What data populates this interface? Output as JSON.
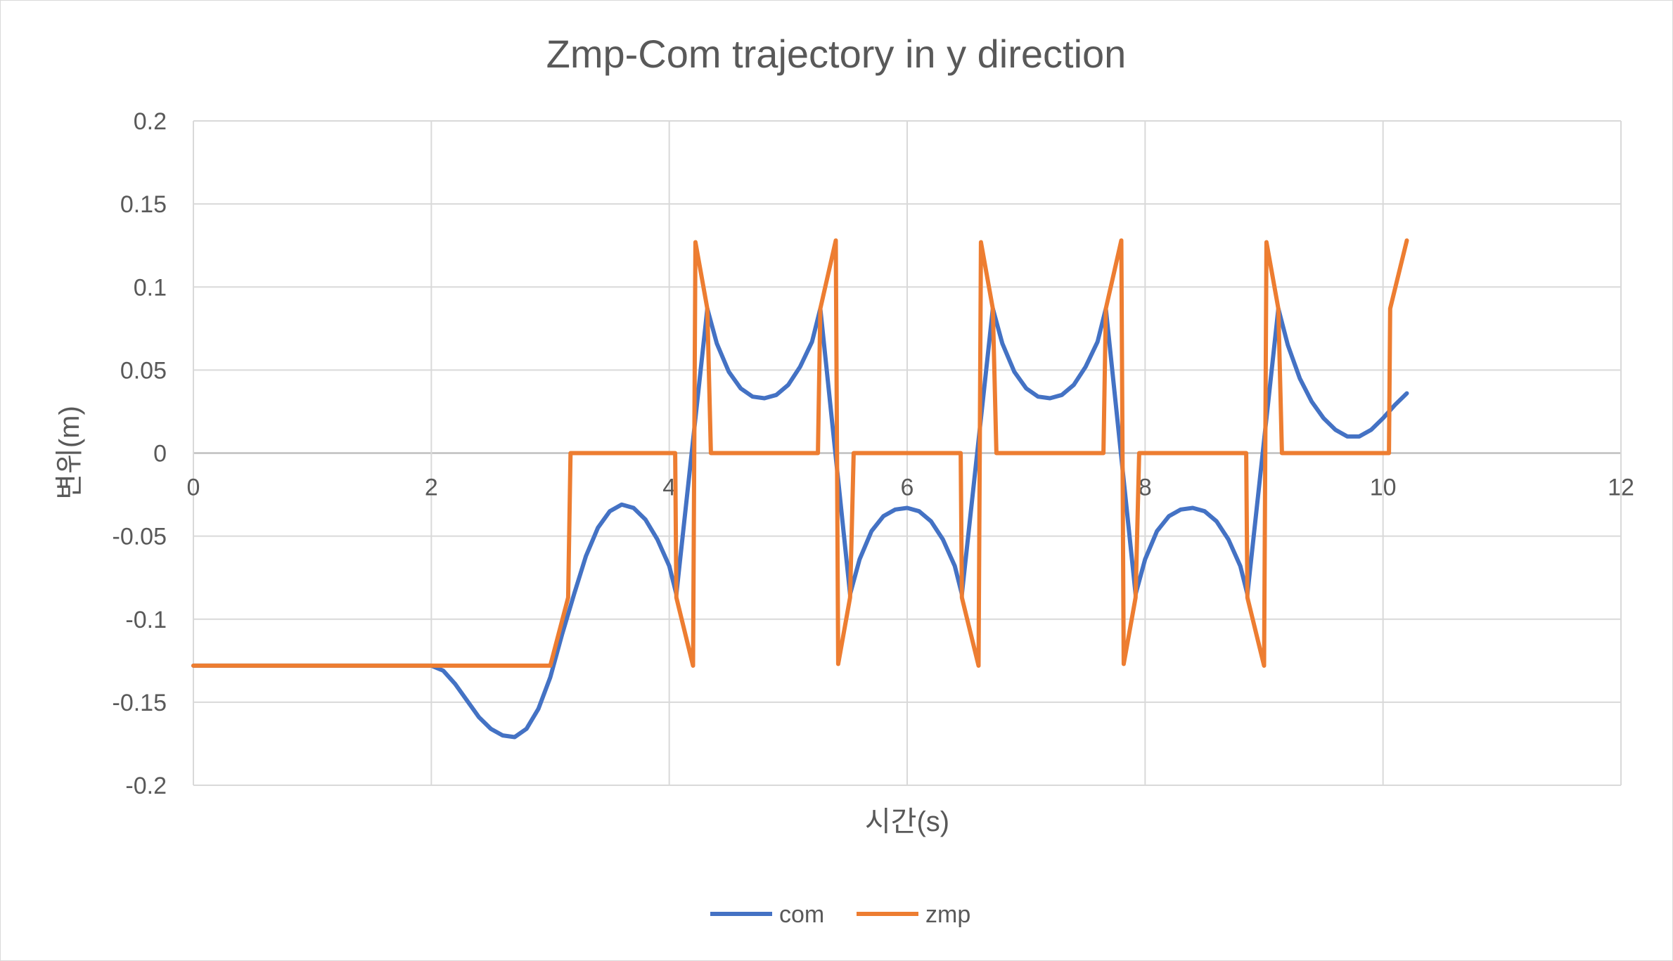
{
  "chart_data": {
    "type": "line",
    "title": "Zmp-Com trajectory in y direction",
    "xlabel": "시간(s)",
    "ylabel": "변위(m)",
    "xlim": [
      0,
      12
    ],
    "ylim": [
      -0.2,
      0.2
    ],
    "x_ticks": [
      0,
      2,
      4,
      6,
      8,
      10,
      12
    ],
    "x_tick_labels": [
      "0",
      "2",
      "4",
      "6",
      "8",
      "10",
      "12"
    ],
    "y_ticks": [
      0.2,
      0.15,
      0.1,
      0.05,
      0,
      -0.05,
      -0.1,
      -0.15,
      -0.2
    ],
    "y_tick_labels": [
      "0.2",
      "0.15",
      "0.1",
      "0.05",
      "0",
      "-0.05",
      "-0.1",
      "-0.15",
      "-0.2"
    ],
    "grid": true,
    "legend_position": "bottom",
    "series": [
      {
        "name": "com",
        "color": "#4472C4",
        "points": [
          [
            0,
            -0.128
          ],
          [
            1.0,
            -0.128
          ],
          [
            2.0,
            -0.128
          ],
          [
            2.1,
            -0.131
          ],
          [
            2.2,
            -0.139
          ],
          [
            2.3,
            -0.149
          ],
          [
            2.4,
            -0.159
          ],
          [
            2.5,
            -0.166
          ],
          [
            2.6,
            -0.17
          ],
          [
            2.7,
            -0.171
          ],
          [
            2.8,
            -0.166
          ],
          [
            2.9,
            -0.154
          ],
          [
            3.0,
            -0.135
          ],
          [
            3.1,
            -0.109
          ],
          [
            3.2,
            -0.085
          ],
          [
            3.3,
            -0.062
          ],
          [
            3.4,
            -0.045
          ],
          [
            3.5,
            -0.035
          ],
          [
            3.6,
            -0.031
          ],
          [
            3.7,
            -0.033
          ],
          [
            3.8,
            -0.04
          ],
          [
            3.9,
            -0.052
          ],
          [
            4.0,
            -0.068
          ],
          [
            4.06,
            -0.085
          ],
          [
            4.32,
            0.087
          ],
          [
            4.4,
            0.066
          ],
          [
            4.5,
            0.049
          ],
          [
            4.6,
            0.039
          ],
          [
            4.7,
            0.034
          ],
          [
            4.8,
            0.033
          ],
          [
            4.9,
            0.035
          ],
          [
            5.0,
            0.041
          ],
          [
            5.1,
            0.052
          ],
          [
            5.2,
            0.067
          ],
          [
            5.27,
            0.087
          ],
          [
            5.52,
            -0.085
          ],
          [
            5.6,
            -0.064
          ],
          [
            5.7,
            -0.047
          ],
          [
            5.8,
            -0.038
          ],
          [
            5.9,
            -0.034
          ],
          [
            6.0,
            -0.033
          ],
          [
            6.1,
            -0.035
          ],
          [
            6.2,
            -0.041
          ],
          [
            6.3,
            -0.052
          ],
          [
            6.4,
            -0.068
          ],
          [
            6.46,
            -0.085
          ],
          [
            6.72,
            0.087
          ],
          [
            6.8,
            0.066
          ],
          [
            6.9,
            0.049
          ],
          [
            7.0,
            0.039
          ],
          [
            7.1,
            0.034
          ],
          [
            7.2,
            0.033
          ],
          [
            7.3,
            0.035
          ],
          [
            7.4,
            0.041
          ],
          [
            7.5,
            0.052
          ],
          [
            7.6,
            0.067
          ],
          [
            7.67,
            0.087
          ],
          [
            7.92,
            -0.085
          ],
          [
            8.0,
            -0.064
          ],
          [
            8.1,
            -0.047
          ],
          [
            8.2,
            -0.038
          ],
          [
            8.3,
            -0.034
          ],
          [
            8.4,
            -0.033
          ],
          [
            8.5,
            -0.035
          ],
          [
            8.6,
            -0.041
          ],
          [
            8.7,
            -0.052
          ],
          [
            8.8,
            -0.068
          ],
          [
            8.86,
            -0.085
          ],
          [
            9.12,
            0.087
          ],
          [
            9.2,
            0.065
          ],
          [
            9.3,
            0.045
          ],
          [
            9.4,
            0.031
          ],
          [
            9.5,
            0.021
          ],
          [
            9.6,
            0.014
          ],
          [
            9.7,
            0.01
          ],
          [
            9.8,
            0.01
          ],
          [
            9.9,
            0.014
          ],
          [
            10.0,
            0.021
          ],
          [
            10.1,
            0.029
          ],
          [
            10.2,
            0.036
          ]
        ]
      },
      {
        "name": "zmp",
        "color": "#ED7D31",
        "points": [
          [
            0,
            -0.128
          ],
          [
            3.0,
            -0.128
          ],
          [
            3.15,
            -0.087
          ],
          [
            3.17,
            0
          ],
          [
            4.05,
            0
          ],
          [
            4.06,
            -0.087
          ],
          [
            4.2,
            -0.128
          ],
          [
            4.22,
            0.127
          ],
          [
            4.32,
            0.087
          ],
          [
            4.35,
            0
          ],
          [
            5.25,
            0
          ],
          [
            5.27,
            0.087
          ],
          [
            5.4,
            0.128
          ],
          [
            5.42,
            -0.127
          ],
          [
            5.52,
            -0.087
          ],
          [
            5.55,
            0
          ],
          [
            6.45,
            0
          ],
          [
            6.46,
            -0.087
          ],
          [
            6.6,
            -0.128
          ],
          [
            6.62,
            0.127
          ],
          [
            6.72,
            0.087
          ],
          [
            6.75,
            0
          ],
          [
            7.65,
            0
          ],
          [
            7.67,
            0.087
          ],
          [
            7.8,
            0.128
          ],
          [
            7.82,
            -0.127
          ],
          [
            7.92,
            -0.087
          ],
          [
            7.95,
            0
          ],
          [
            8.85,
            0
          ],
          [
            8.86,
            -0.087
          ],
          [
            9.0,
            -0.128
          ],
          [
            9.02,
            0.127
          ],
          [
            9.12,
            0.087
          ],
          [
            9.15,
            0
          ],
          [
            10.05,
            0
          ],
          [
            10.06,
            0.087
          ],
          [
            10.2,
            0.128
          ]
        ]
      }
    ]
  }
}
